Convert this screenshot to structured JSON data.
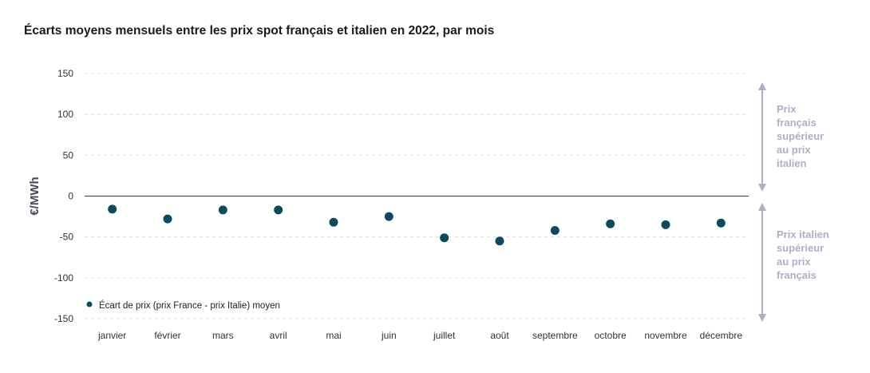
{
  "chart_data": {
    "type": "scatter",
    "title": "Écarts moyens mensuels entre les prix spot français et italien en 2022, par mois",
    "ylabel": "€/MWh",
    "xlabel": "",
    "ylim": [
      -150,
      150
    ],
    "yticks": [
      150,
      100,
      50,
      0,
      -50,
      -100,
      -150
    ],
    "grid": "horizontal-dashed",
    "categories": [
      "janvier",
      "février",
      "mars",
      "avril",
      "mai",
      "juin",
      "juillet",
      "août",
      "septembre",
      "octobre",
      "novembre",
      "décembre"
    ],
    "series": [
      {
        "name": "Écart de prix (prix France - prix Italie) moyen",
        "color": "#0d4a5e",
        "values": [
          -16,
          -28,
          -17,
          -17,
          -32,
          -25,
          -51,
          -55,
          -42,
          -34,
          -35,
          -33
        ]
      }
    ],
    "legend_position": "bottom-left",
    "annotations": [
      {
        "lines": [
          "Prix",
          "français",
          "supérieur",
          "au prix",
          "italien"
        ],
        "arrow_color": "#b3acc6",
        "text_color": "#b3acc6"
      },
      {
        "lines": [
          "Prix italien",
          "supérieur",
          "au prix",
          "français"
        ],
        "arrow_color": "#b3acc6",
        "text_color": "#b3acc6"
      }
    ]
  }
}
